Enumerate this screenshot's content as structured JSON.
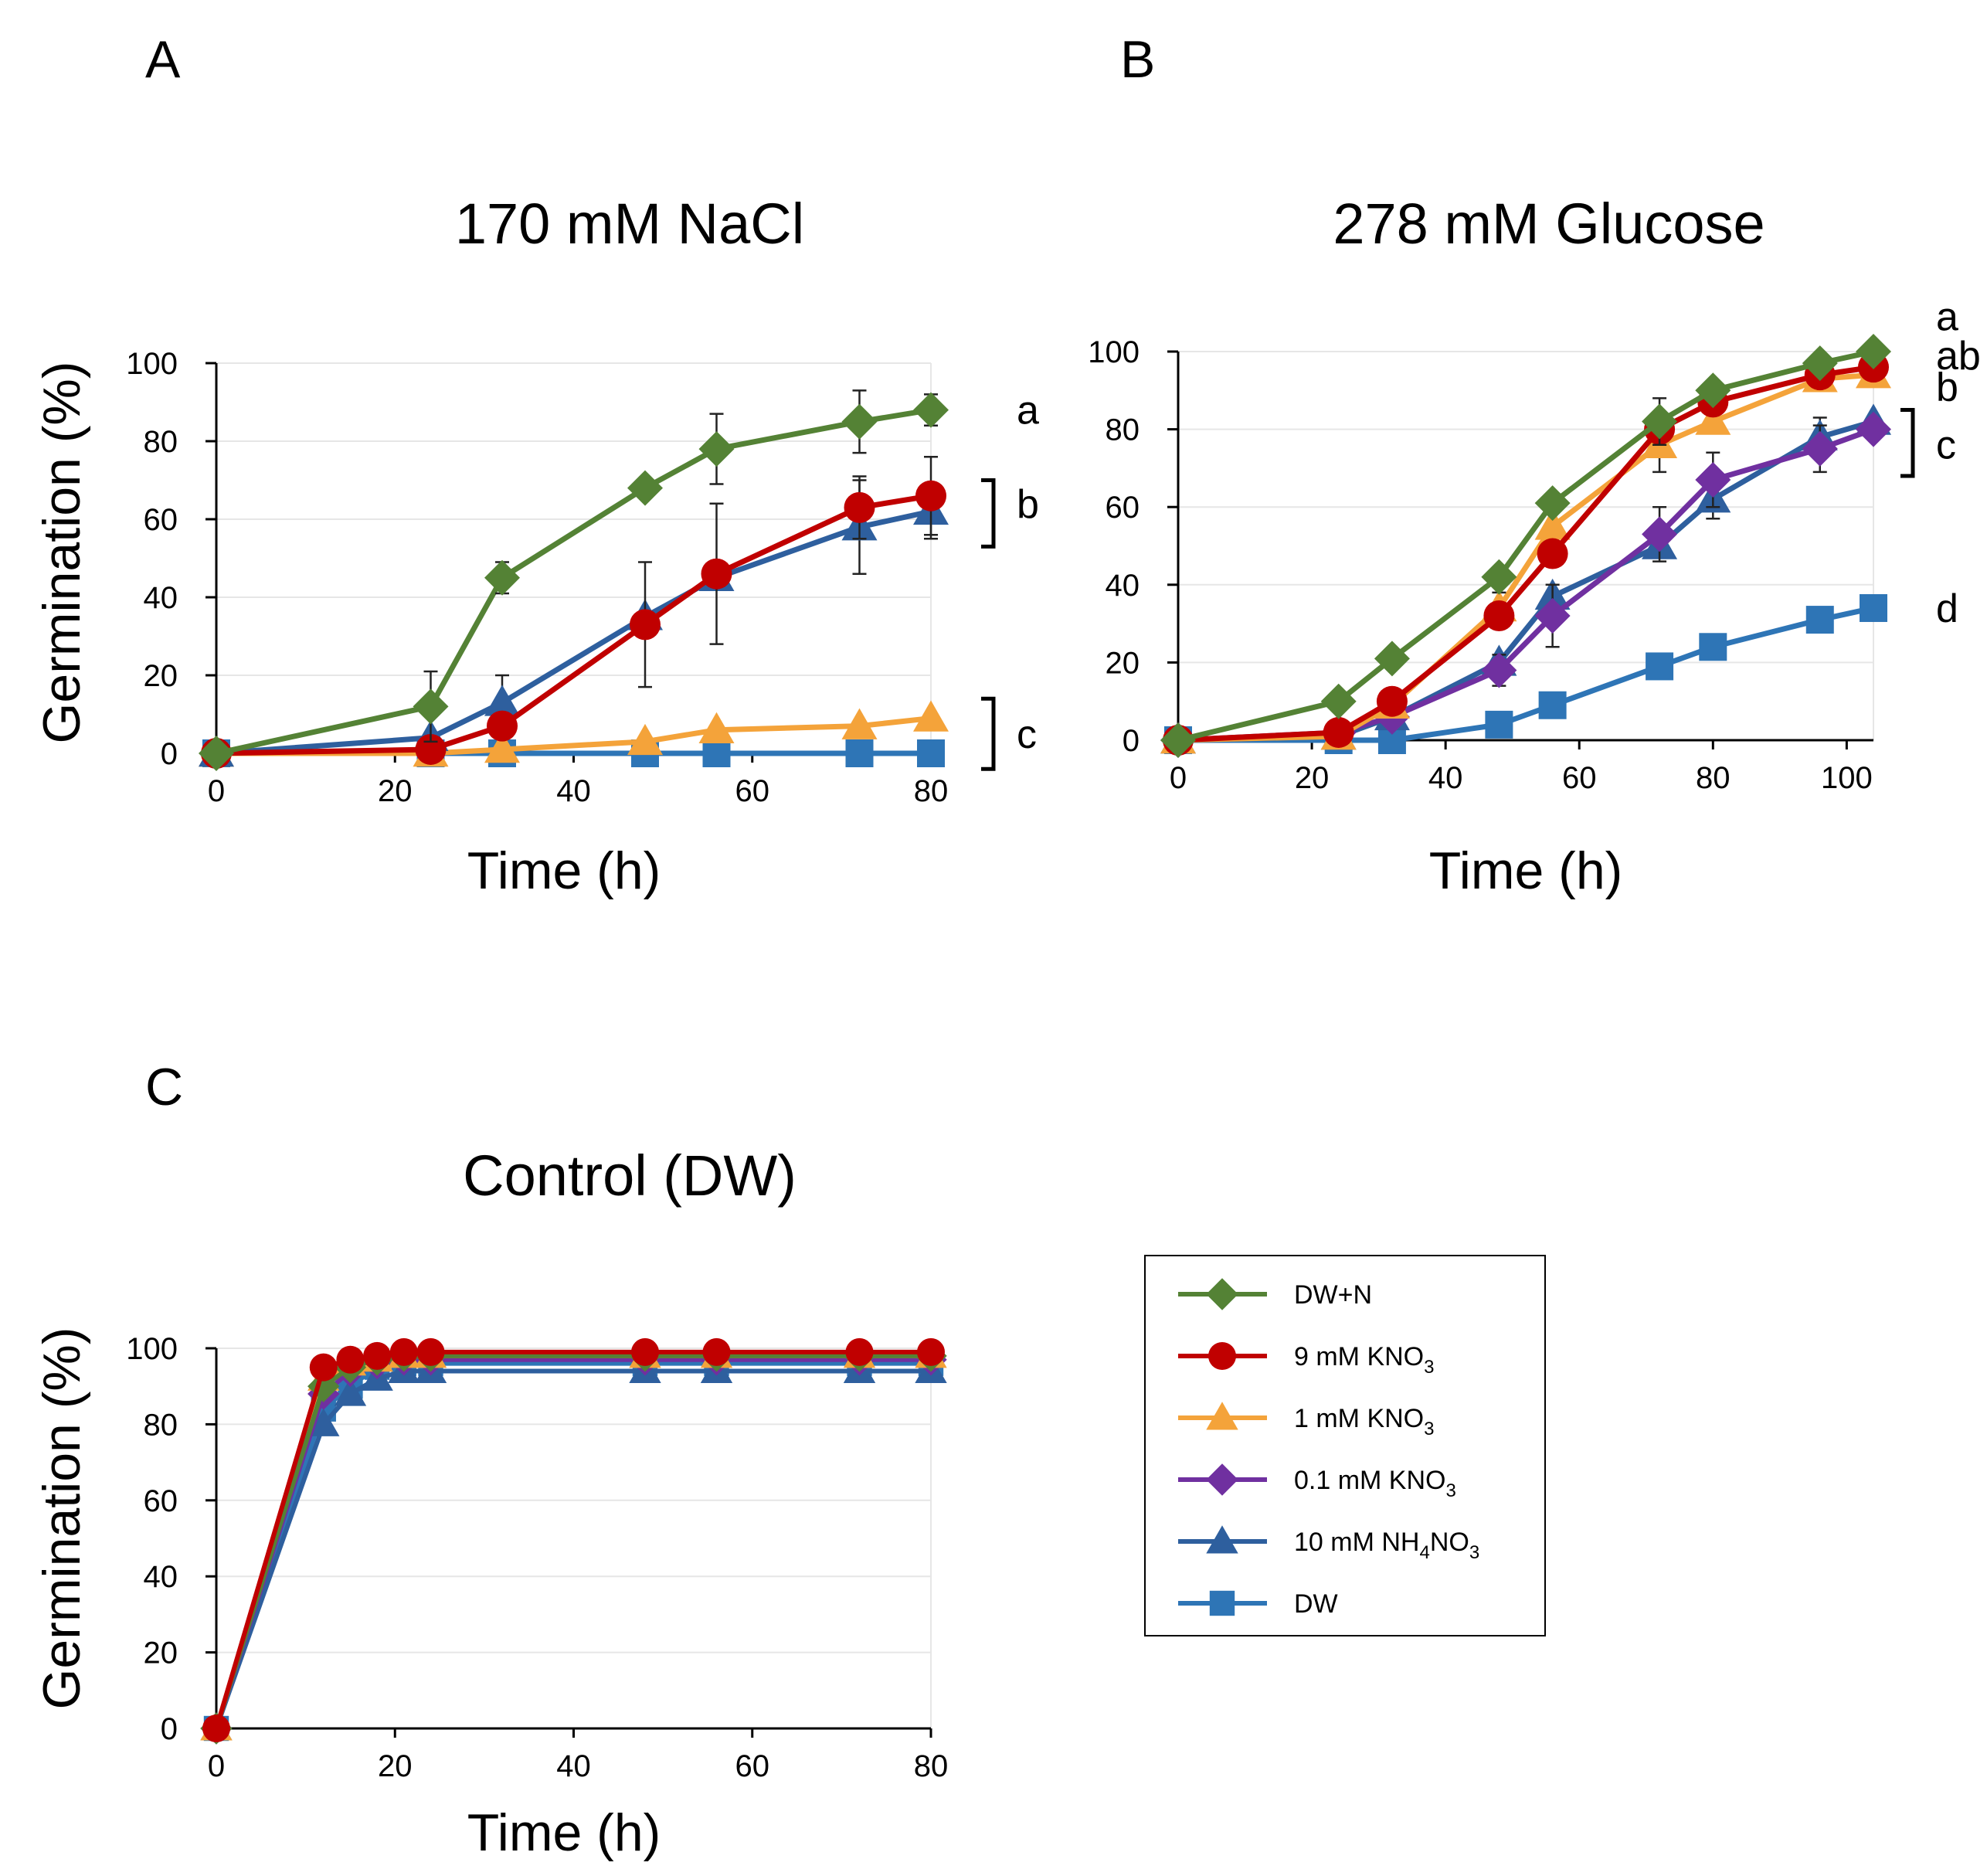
{
  "series_styles": [
    {
      "key": "dwn",
      "name": "DW+N",
      "color": "#548235",
      "marker": "diamond"
    },
    {
      "key": "k9",
      "name": "9 mM KNO3",
      "color": "#c00000",
      "marker": "circle"
    },
    {
      "key": "k1",
      "name": "1 mM KNO3",
      "color": "#f4a33a",
      "marker": "triangle"
    },
    {
      "key": "k01",
      "name": "0.1 mM KNO3",
      "color": "#7030a0",
      "marker": "diamond"
    },
    {
      "key": "nh4",
      "name": "10 mM NH4NO3",
      "color": "#2e5f9e",
      "marker": "triangle"
    },
    {
      "key": "dw",
      "name": "DW",
      "color": "#2e75b6",
      "marker": "square"
    }
  ],
  "legend": {
    "items": [
      {
        "key": "dwn",
        "label": "DW+N",
        "sub": "",
        "suffix": ""
      },
      {
        "key": "k9",
        "label": "9 mM KNO",
        "sub": "3",
        "suffix": ""
      },
      {
        "key": "k1",
        "label": "1 mM KNO",
        "sub": "3",
        "suffix": ""
      },
      {
        "key": "k01",
        "label": "0.1 mM KNO",
        "sub": "3",
        "suffix": ""
      },
      {
        "key": "nh4",
        "label": "10 mM NH",
        "sub": "4",
        "suffix": "NO"
      },
      {
        "key": "dw",
        "label": "DW",
        "sub": "",
        "suffix": ""
      }
    ]
  },
  "chart_data": [
    {
      "panel": "A",
      "type": "line",
      "title": "170 mM NaCl",
      "xlabel": "Time (h)",
      "ylabel": "Germination (%)",
      "xlim": [
        0,
        80
      ],
      "ylim": [
        0,
        100
      ],
      "xticks": [
        0,
        20,
        40,
        60,
        80
      ],
      "yticks": [
        0,
        20,
        40,
        60,
        80,
        100
      ],
      "grid": true,
      "x": [
        0,
        24,
        32,
        48,
        56,
        72,
        80
      ],
      "series": [
        {
          "key": "dw",
          "name": "DW",
          "values": [
            0,
            0,
            0,
            0,
            0,
            0,
            0
          ],
          "errors": [
            0,
            0,
            0,
            0,
            0,
            0,
            0
          ]
        },
        {
          "key": "k1",
          "name": "1 mM KNO3",
          "values": [
            0,
            0,
            1,
            3,
            6,
            7,
            9
          ],
          "errors": [
            0,
            0,
            0,
            0,
            0,
            0,
            0
          ]
        },
        {
          "key": "nh4",
          "name": "10 mM NH4NO3",
          "values": [
            0,
            4,
            13,
            35,
            45,
            58,
            62
          ],
          "errors": [
            0,
            0,
            7,
            0,
            0,
            12,
            7
          ]
        },
        {
          "key": "k9",
          "name": "9 mM KNO3",
          "values": [
            0,
            1,
            7,
            33,
            46,
            63,
            66
          ],
          "errors": [
            0,
            0,
            0,
            16,
            18,
            8,
            10
          ]
        },
        {
          "key": "dwn",
          "name": "DW+N",
          "values": [
            0,
            12,
            45,
            68,
            78,
            85,
            88
          ],
          "errors": [
            0,
            9,
            4,
            0,
            9,
            8,
            4
          ]
        }
      ],
      "annotations": [
        {
          "text": "a",
          "x_rel": 1.12,
          "y": 88,
          "bracket": null
        },
        {
          "text": "b",
          "x_rel": 1.12,
          "y": 64,
          "bracket": [
            53,
            70
          ]
        },
        {
          "text": "c",
          "x_rel": 1.12,
          "y": 5,
          "bracket": [
            -4,
            14
          ]
        }
      ]
    },
    {
      "panel": "B",
      "type": "line",
      "title": "278 mM Glucose",
      "xlabel": "Time (h)",
      "ylabel": "",
      "xlim": [
        0,
        104
      ],
      "ylim": [
        0,
        100
      ],
      "xticks": [
        0,
        20,
        40,
        60,
        80,
        100
      ],
      "yticks": [
        0,
        20,
        40,
        60,
        80,
        100
      ],
      "grid": true,
      "x": [
        0,
        24,
        32,
        48,
        56,
        72,
        80,
        96,
        104
      ],
      "series": [
        {
          "key": "dw",
          "name": "DW",
          "values": [
            0,
            0,
            0,
            4,
            9,
            19,
            24,
            31,
            34
          ],
          "errors": [
            0,
            0,
            0,
            0,
            0,
            0,
            0,
            0,
            0
          ]
        },
        {
          "key": "nh4",
          "name": "10 mM NH4NO3",
          "values": [
            0,
            1,
            6,
            20,
            37,
            50,
            62,
            78,
            82
          ],
          "errors": [
            0,
            0,
            0,
            0,
            0,
            0,
            5,
            5,
            0
          ]
        },
        {
          "key": "k01",
          "name": "0.1 mM KNO3",
          "values": [
            0,
            2,
            6,
            18,
            32,
            53,
            67,
            75,
            80
          ],
          "errors": [
            0,
            0,
            0,
            4,
            8,
            7,
            7,
            6,
            0
          ]
        },
        {
          "key": "k1",
          "name": "1 mM KNO3",
          "values": [
            0,
            1,
            9,
            34,
            55,
            76,
            82,
            93,
            94
          ],
          "errors": [
            0,
            0,
            0,
            4,
            4,
            7,
            0,
            2,
            0
          ]
        },
        {
          "key": "k9",
          "name": "9 mM KNO3",
          "values": [
            0,
            2,
            10,
            32,
            48,
            80,
            87,
            94,
            96
          ],
          "errors": [
            0,
            0,
            0,
            0,
            0,
            4,
            0,
            2,
            0
          ]
        },
        {
          "key": "dwn",
          "name": "DW+N",
          "values": [
            0,
            10,
            21,
            42,
            61,
            82,
            90,
            97,
            100
          ],
          "errors": [
            0,
            0,
            0,
            0,
            0,
            6,
            0,
            2,
            0
          ]
        }
      ],
      "annotations": [
        {
          "text": "a",
          "x_rel": 1.09,
          "y": 109,
          "bracket": null
        },
        {
          "text": "ab",
          "x_rel": 1.09,
          "y": 99,
          "bracket": null
        },
        {
          "text": "b",
          "x_rel": 1.09,
          "y": 91,
          "bracket": null
        },
        {
          "text": "c",
          "x_rel": 1.09,
          "y": 76,
          "bracket": [
            68,
            85
          ]
        },
        {
          "text": "d",
          "x_rel": 1.09,
          "y": 34,
          "bracket": null
        }
      ]
    },
    {
      "panel": "C",
      "type": "line",
      "title": "Control (DW)",
      "xlabel": "Time (h)",
      "ylabel": "Germination (%)",
      "xlim": [
        0,
        80
      ],
      "ylim": [
        0,
        100
      ],
      "xticks": [
        0,
        20,
        40,
        60,
        80
      ],
      "yticks": [
        0,
        20,
        40,
        60,
        80,
        100
      ],
      "grid": true,
      "x": [
        0,
        12,
        15,
        18,
        21,
        24,
        48,
        56,
        72,
        80
      ],
      "series": [
        {
          "key": "dw",
          "name": "DW",
          "values": [
            0,
            84,
            90,
            95,
            96,
            96,
            96,
            96,
            96,
            96
          ],
          "errors": [
            0,
            0,
            0,
            0,
            0,
            0,
            0,
            0,
            0,
            0
          ]
        },
        {
          "key": "nh4",
          "name": "10 mM NH4NO3",
          "values": [
            0,
            80,
            88,
            92,
            94,
            94,
            94,
            94,
            94,
            94
          ],
          "errors": [
            0,
            0,
            0,
            0,
            0,
            0,
            0,
            0,
            0,
            0
          ]
        },
        {
          "key": "k01",
          "name": "0.1 mM KNO3",
          "values": [
            0,
            88,
            94,
            96,
            97,
            97,
            97,
            97,
            97,
            97
          ],
          "errors": [
            0,
            0,
            0,
            0,
            0,
            0,
            0,
            0,
            0,
            0
          ]
        },
        {
          "key": "k1",
          "name": "1 mM KNO3",
          "values": [
            0,
            92,
            96,
            97,
            98,
            98,
            98,
            98,
            98,
            98
          ],
          "errors": [
            0,
            0,
            0,
            0,
            0,
            0,
            0,
            0,
            0,
            0
          ]
        },
        {
          "key": "dwn",
          "name": "DW+N",
          "values": [
            0,
            90,
            95,
            97,
            98,
            98,
            98,
            98,
            98,
            98
          ],
          "errors": [
            0,
            0,
            0,
            0,
            0,
            0,
            0,
            0,
            0,
            0
          ]
        },
        {
          "key": "k9",
          "name": "9 mM KNO3",
          "values": [
            0,
            95,
            97,
            98,
            99,
            99,
            99,
            99,
            99,
            99
          ],
          "errors": [
            0,
            0,
            0,
            0,
            0,
            0,
            0,
            0,
            0,
            0
          ]
        }
      ],
      "annotations": []
    }
  ]
}
